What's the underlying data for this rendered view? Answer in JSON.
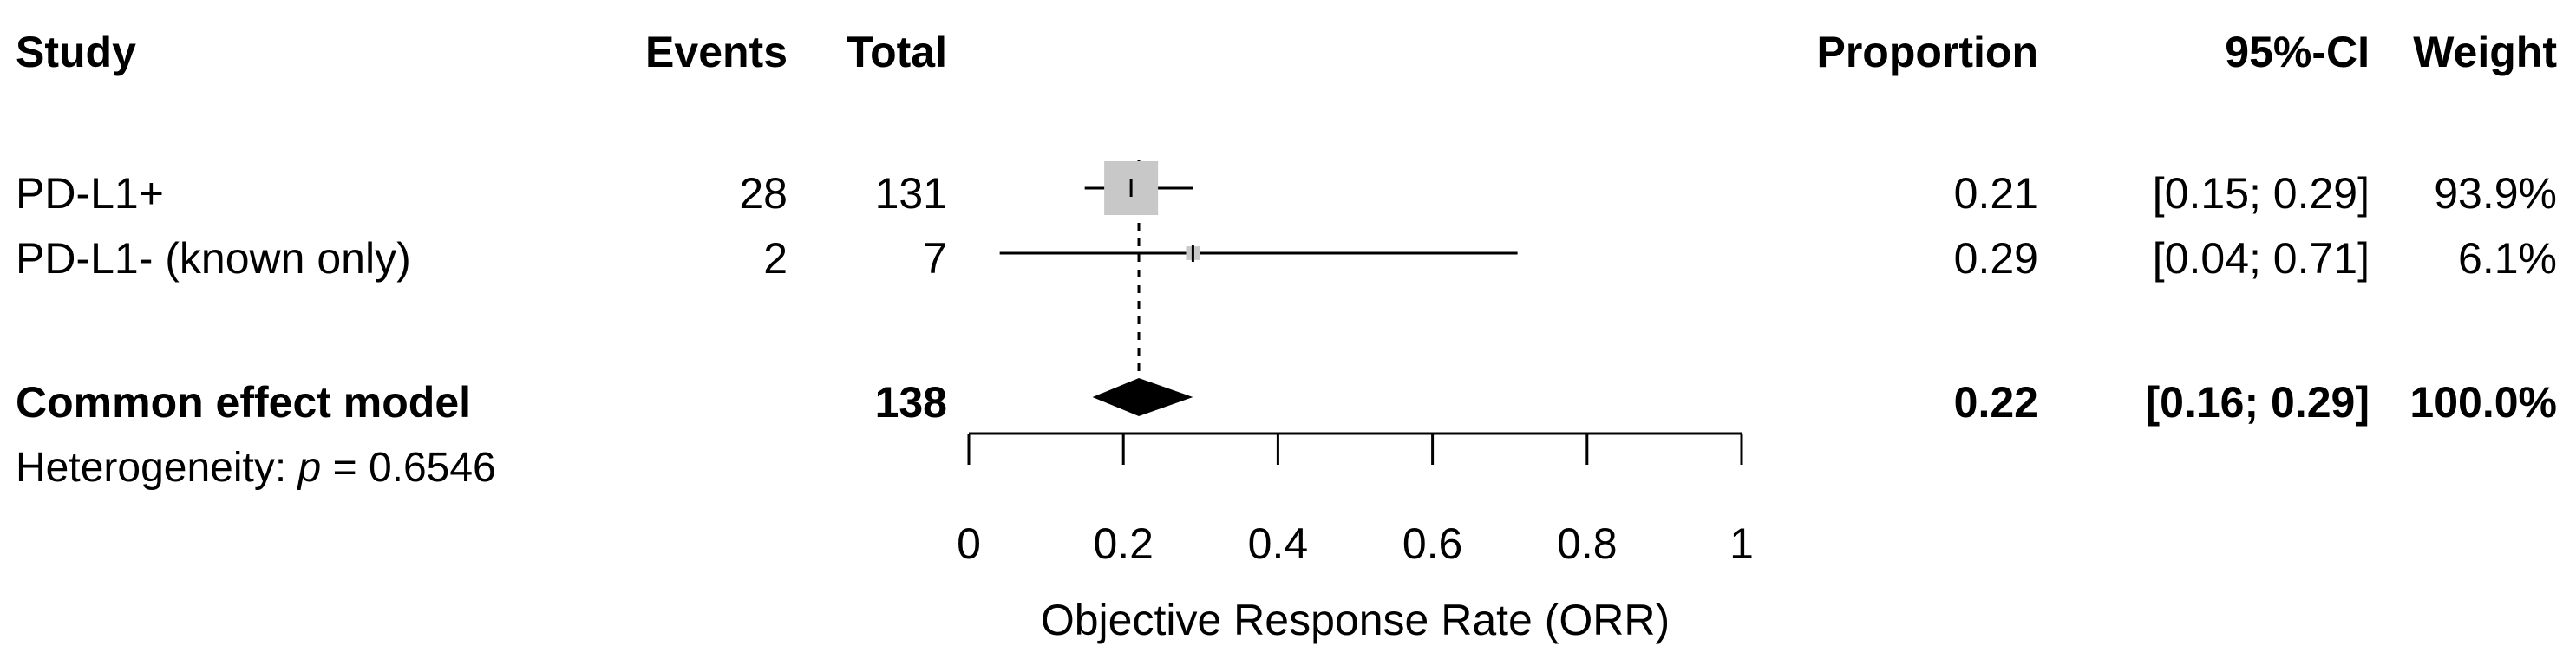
{
  "header": {
    "study": "Study",
    "events": "Events",
    "total": "Total",
    "proportion": "Proportion",
    "ci": "95%-CI",
    "weight": "Weight"
  },
  "rows": [
    {
      "study": "PD-L1+",
      "events": "28",
      "total": "131",
      "proportion": "0.21",
      "ci": "[0.15; 0.29]",
      "weight": "93.9%"
    },
    {
      "study": "PD-L1- (known only)",
      "events": "2",
      "total": "7",
      "proportion": "0.29",
      "ci": "[0.04; 0.71]",
      "weight": "6.1%"
    }
  ],
  "pooled": {
    "label": "Common effect model",
    "total": "138",
    "proportion": "0.22",
    "ci": "[0.16; 0.29]",
    "weight": "100.0%"
  },
  "heterogeneity": {
    "prefix": "Heterogeneity: ",
    "symbol": "p",
    "suffix": " = 0.6546"
  },
  "chart_data": {
    "type": "forest",
    "xlabel": "Objective Response Rate (ORR)",
    "xlim": [
      0,
      1
    ],
    "ticks": [
      0,
      0.2,
      0.4,
      0.6,
      0.8,
      1
    ],
    "tick_labels": [
      "0",
      "0.2",
      "0.4",
      "0.6",
      "0.8",
      "1"
    ],
    "studies": [
      {
        "name": "PD-L1+",
        "estimate": 0.21,
        "lower": 0.15,
        "upper": 0.29,
        "weight": 93.9
      },
      {
        "name": "PD-L1- (known only)",
        "estimate": 0.29,
        "lower": 0.04,
        "upper": 0.71,
        "weight": 6.1
      }
    ],
    "pooled": {
      "name": "Common effect model",
      "estimate": 0.22,
      "lower": 0.16,
      "upper": 0.29
    },
    "reference_line": 0.22,
    "colors": {
      "study_box": "#c8c8c8",
      "diamond": "#000000",
      "line": "#000000"
    }
  }
}
